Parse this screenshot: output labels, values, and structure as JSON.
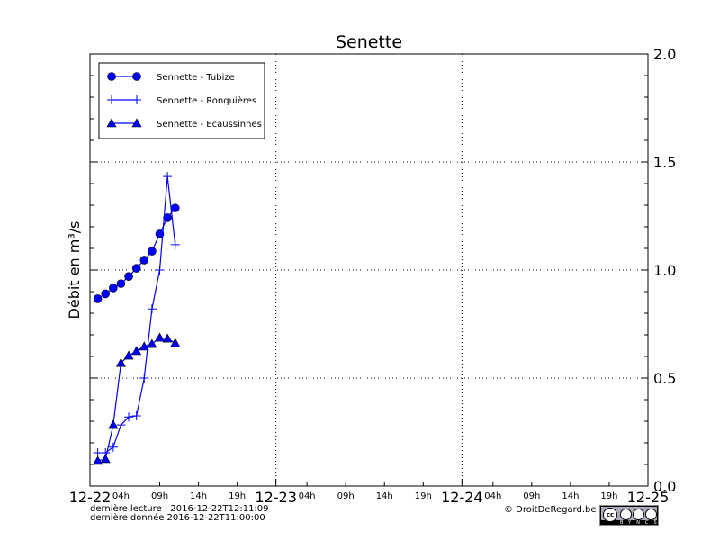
{
  "chart_data": {
    "type": "line",
    "title": "Senette",
    "ylabel": "Débit en m³/s",
    "xlabel": "",
    "ylim": [
      0,
      2.0
    ],
    "xlim": [
      "2016-12-22T00:00",
      "2016-12-25T00:00"
    ],
    "yticks": [
      "0.0",
      "0.5",
      "1.0",
      "1.5",
      "2.0"
    ],
    "xticks_major": [
      "12-22",
      "12-23",
      "12-24",
      "12-25"
    ],
    "xticks_minor": [
      "04h",
      "09h",
      "14h",
      "19h"
    ],
    "grid": true,
    "legend_position": "top-left",
    "x": [
      "2016-12-22T01:00",
      "2016-12-22T02:00",
      "2016-12-22T03:00",
      "2016-12-22T04:00",
      "2016-12-22T05:00",
      "2016-12-22T06:00",
      "2016-12-22T07:00",
      "2016-12-22T08:00",
      "2016-12-22T09:00",
      "2016-12-22T10:00",
      "2016-12-22T11:00"
    ],
    "series": [
      {
        "name": "Sennette - Tubize",
        "marker": "circle",
        "color": "#0000ff",
        "values": [
          0.867,
          0.89,
          0.917,
          0.937,
          0.97,
          1.008,
          1.046,
          1.087,
          1.167,
          1.242,
          1.287
        ]
      },
      {
        "name": "Sennette - Ronquières",
        "marker": "plus",
        "color": "#0000ff",
        "values": [
          0.154,
          0.154,
          0.18,
          0.283,
          0.32,
          0.325,
          0.5,
          0.82,
          1.0,
          1.433,
          1.117
        ]
      },
      {
        "name": "Sennette - Ecaussinnes",
        "marker": "triangle",
        "color": "#0000ff",
        "values": [
          0.117,
          0.125,
          0.283,
          0.57,
          0.604,
          0.625,
          0.646,
          0.658,
          0.687,
          0.683,
          0.662
        ]
      }
    ]
  },
  "footer": {
    "last_read": "dernière lecture : 2016-12-22T12:11:09",
    "last_data": "dernière donnée  2016-12-22T11:00:00",
    "copyright": "© DroitDeRegard.be",
    "license": "cc BY NC SA"
  }
}
